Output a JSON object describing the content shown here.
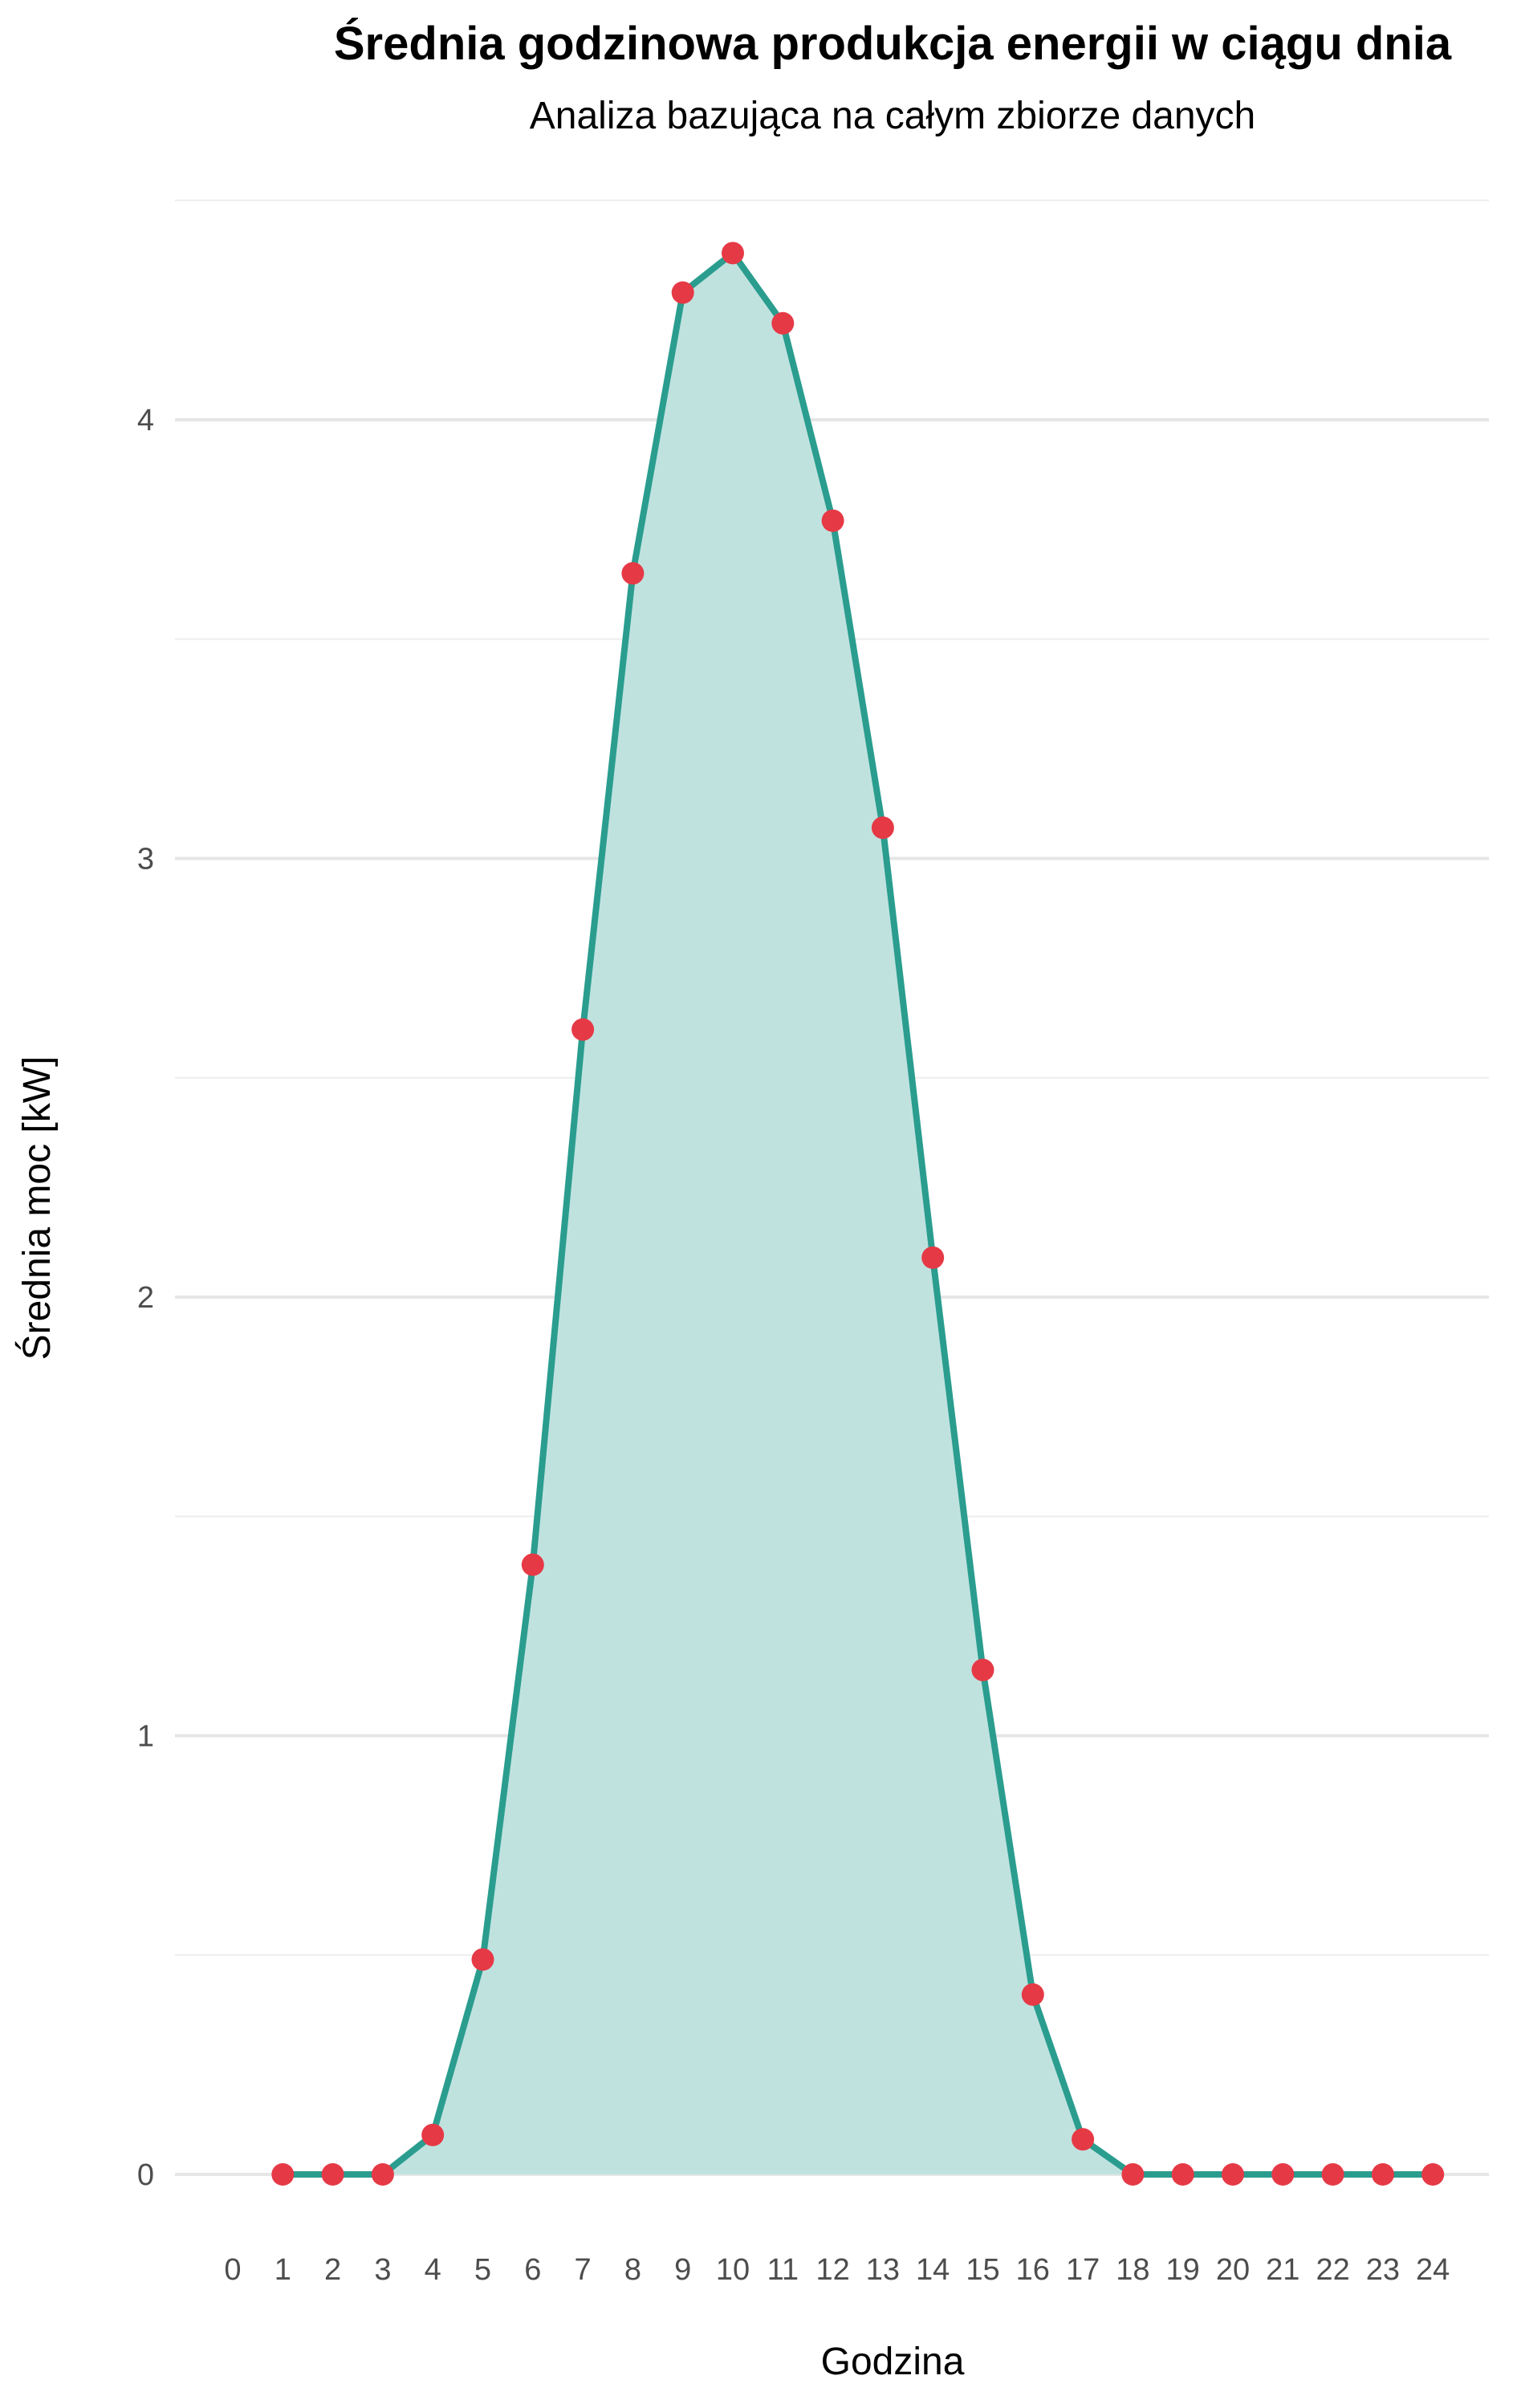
{
  "chart_data": {
    "type": "area",
    "title": "Średnia godzinowa produkcja energii w ciągu dnia",
    "subtitle": "Analiza bazująca na całym zbiorze danych",
    "xlabel": "Godzina",
    "ylabel": "Średnia moc [kW]",
    "xlim": [
      0,
      24
    ],
    "ylim": [
      0,
      4.5
    ],
    "x_ticks": [
      0,
      1,
      2,
      3,
      4,
      5,
      6,
      7,
      8,
      9,
      10,
      11,
      12,
      13,
      14,
      15,
      16,
      17,
      18,
      19,
      20,
      21,
      22,
      23,
      24
    ],
    "y_ticks": [
      0,
      1,
      2,
      3,
      4
    ],
    "y_minor_ticks": [
      0.5,
      1.5,
      2.5,
      3.5,
      4.5
    ],
    "grid": true,
    "legend": "none",
    "x": [
      1,
      2,
      3,
      4,
      5,
      6,
      7,
      8,
      9,
      10,
      11,
      12,
      13,
      14,
      15,
      16,
      17,
      18,
      19,
      20,
      21,
      22,
      23,
      24
    ],
    "values": [
      0.0,
      0.0,
      0.0,
      0.09,
      0.49,
      1.39,
      2.61,
      3.65,
      4.29,
      4.38,
      4.22,
      3.77,
      3.07,
      2.09,
      1.15,
      0.41,
      0.08,
      0.0,
      0.0,
      0.0,
      0.0,
      0.0,
      0.0,
      0.0
    ],
    "colors": {
      "line": "#2a9d8f",
      "fill": "#c0e2df",
      "point": "#e63946",
      "grid": "#e6e6e6"
    }
  }
}
